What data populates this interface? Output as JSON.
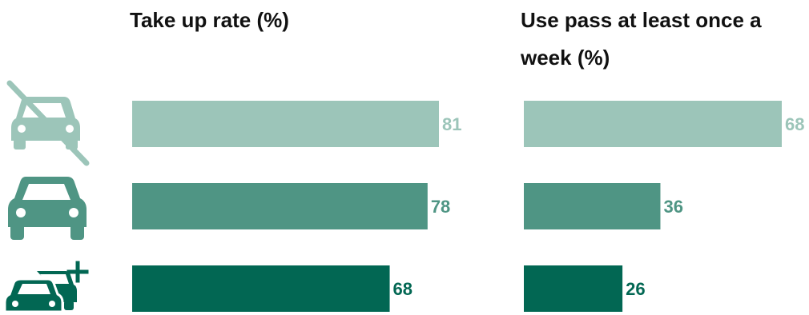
{
  "colors": {
    "no_car": "#9cc5b9",
    "one_car": "#4f9584",
    "multi_car": "#026753"
  },
  "icons": [
    "no-car-icon",
    "one-car-icon",
    "multiple-cars-icon"
  ],
  "chart_data": [
    {
      "type": "bar",
      "orientation": "horizontal",
      "title": "Take up rate (%)",
      "categories": [
        "no car",
        "one car",
        "two or more cars"
      ],
      "values": [
        81,
        78,
        68
      ],
      "xlim": [
        0,
        100
      ],
      "grid": false,
      "legend": "none"
    },
    {
      "type": "bar",
      "orientation": "horizontal",
      "title": "Use pass at least once a week (%)",
      "categories": [
        "no car",
        "one car",
        "two or more cars"
      ],
      "values": [
        68,
        36,
        26
      ],
      "xlim": [
        0,
        70
      ],
      "grid": false,
      "legend": "none"
    }
  ]
}
